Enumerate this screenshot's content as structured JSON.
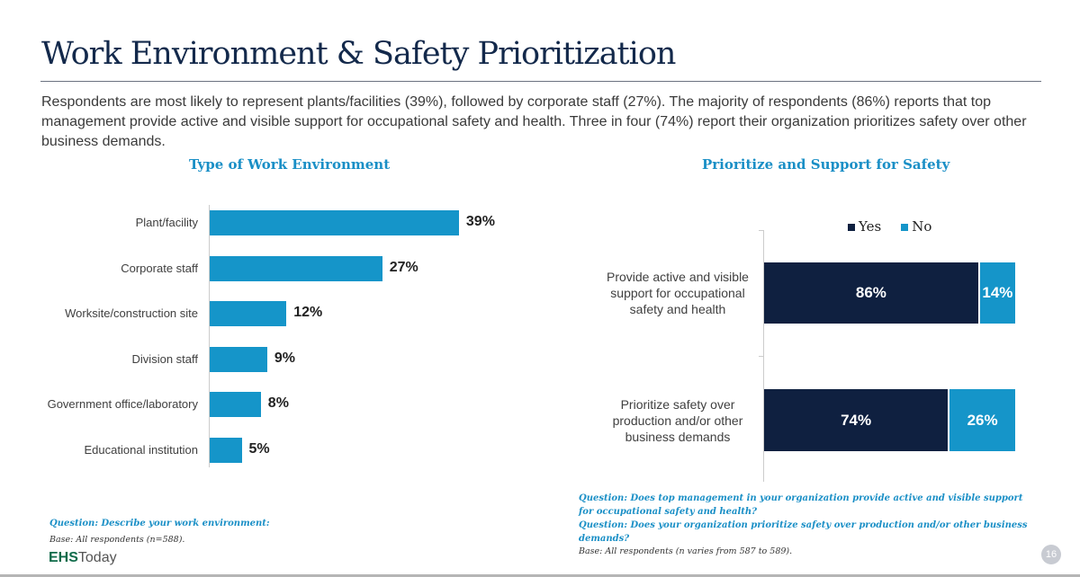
{
  "title": "Work Environment & Safety Prioritization",
  "summary": "Respondents are most likely to represent plants/facilities (39%), followed by corporate staff (27%). The majority of respondents (86%) reports that top management provide active and visible support for occupational safety and health. Three in four (74%) report their organization prioritizes safety over other business demands.",
  "colors": {
    "accent": "#1595c9",
    "navy": "#0f2040",
    "title": "#13294b"
  },
  "chart_data": [
    {
      "type": "bar",
      "orientation": "horizontal",
      "title": "Type of Work Environment",
      "categories": [
        "Plant/facility",
        "Corporate staff",
        "Worksite/construction site",
        "Division staff",
        "Government office/laboratory",
        "Educational institution"
      ],
      "values": [
        39,
        27,
        12,
        9,
        8,
        5
      ],
      "labels": [
        "39%",
        "27%",
        "12%",
        "9%",
        "8%",
        "5%"
      ],
      "unit": "%",
      "grid": false
    },
    {
      "type": "bar",
      "orientation": "horizontal",
      "stacked": true,
      "title": "Prioritize and Support for Safety",
      "categories": [
        "Provide active and visible support for occupational safety and health",
        "Prioritize safety over production and/or other business demands"
      ],
      "series": [
        {
          "name": "Yes",
          "color": "#0f2040",
          "values": [
            86,
            74
          ],
          "labels": [
            "86%",
            "74%"
          ]
        },
        {
          "name": "No",
          "color": "#1595c9",
          "values": [
            14,
            26
          ],
          "labels": [
            "14%",
            "26%"
          ]
        }
      ],
      "legend": "top",
      "grid": false
    }
  ],
  "footer": {
    "left_question": "Question: Describe your work environment:",
    "left_base": "Base: All respondents (n=588).",
    "right_question1": "Question: Does top management in your organization provide active and visible support for occupational safety and health?",
    "right_question2": "Question: Does your organization prioritize safety over production and/or other business demands?",
    "right_base": "Base: All respondents (n varies from 587 to 589).",
    "logo_bold": "EHS",
    "logo_light": "Today",
    "page_number": "16"
  }
}
